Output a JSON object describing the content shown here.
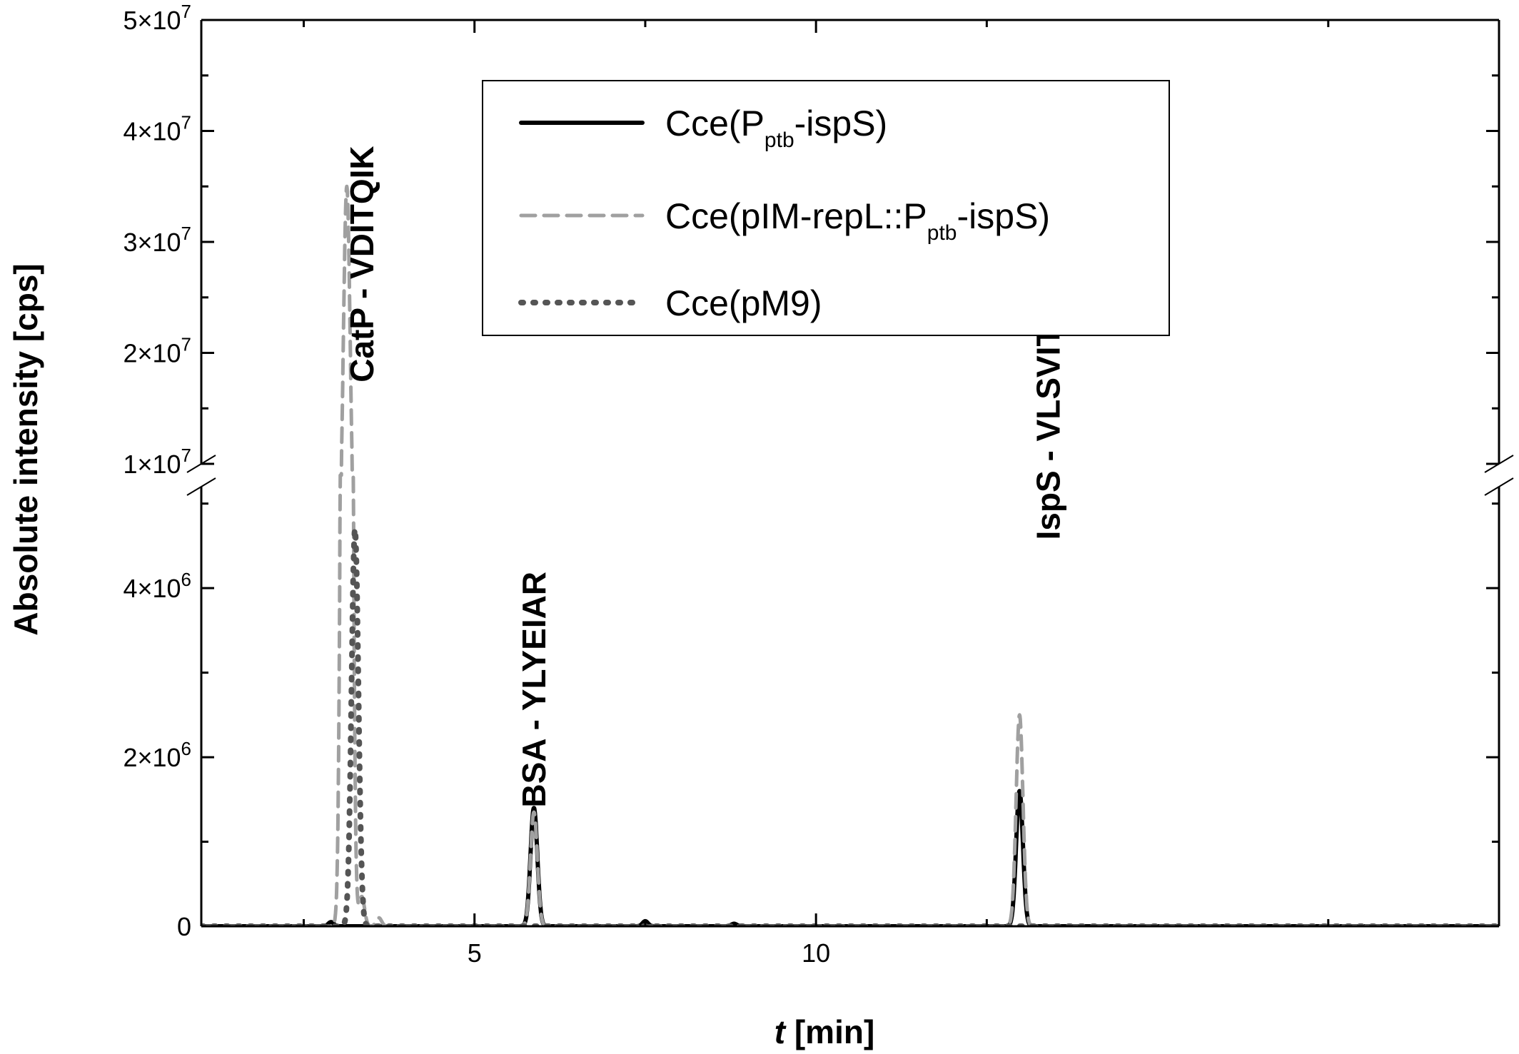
{
  "chart_data": {
    "type": "line",
    "xlabel_italic": "t",
    "xlabel_unit": " [min]",
    "ylabel": "Absolute intensity [cps]",
    "xlim": [
      1,
      20
    ],
    "x_ticks": [
      5,
      10
    ],
    "x_tick_labels": [
      "5",
      "10"
    ],
    "y_axis_broken": true,
    "y_lower_range": [
      0,
      5200000
    ],
    "y_upper_range": [
      10000000,
      50000000
    ],
    "y_tick_labels": [
      {
        "value": 0,
        "mant": "0",
        "exp": ""
      },
      {
        "value": 2000000,
        "mant": "2×10",
        "exp": "6"
      },
      {
        "value": 4000000,
        "mant": "4×10",
        "exp": "6"
      },
      {
        "value": 10000000,
        "mant": "1×10",
        "exp": "7"
      },
      {
        "value": 20000000,
        "mant": "2×10",
        "exp": "7"
      },
      {
        "value": 30000000,
        "mant": "3×10",
        "exp": "7"
      },
      {
        "value": 40000000,
        "mant": "4×10",
        "exp": "7"
      },
      {
        "value": 50000000,
        "mant": "5×10",
        "exp": "7"
      }
    ],
    "legend_position": "top-right",
    "series": [
      {
        "name_main": "Cce(P",
        "name_sub": "ptb",
        "name_tail": "-ispS)",
        "color": "#000000",
        "style": "solid",
        "peaks": [
          {
            "x": 5.87,
            "y": 1400000,
            "w": 0.05
          },
          {
            "x": 12.98,
            "y": 1600000,
            "w": 0.05
          }
        ],
        "bumps": [
          {
            "x": 2.9,
            "y": 50000
          },
          {
            "x": 7.5,
            "y": 60000
          },
          {
            "x": 8.8,
            "y": 30000
          }
        ]
      },
      {
        "name_main": "Cce(pIM-repL::P",
        "name_sub": "ptb",
        "name_tail": "-ispS)",
        "color": "#a0a0a0",
        "style": "dashed",
        "peaks": [
          {
            "x": 3.13,
            "y": 35000000,
            "w": 0.05
          },
          {
            "x": 5.87,
            "y": 1350000,
            "w": 0.05
          },
          {
            "x": 12.98,
            "y": 2500000,
            "w": 0.05
          }
        ],
        "bumps": [
          {
            "x": 3.35,
            "y": 350000
          },
          {
            "x": 3.6,
            "y": 100000
          }
        ]
      },
      {
        "name_main": "Cce(pM9)",
        "name_sub": "",
        "name_tail": "",
        "color": "#555555",
        "style": "dotted",
        "peaks": [
          {
            "x": 3.25,
            "y": 4700000,
            "w": 0.05
          }
        ],
        "bumps": []
      }
    ],
    "annotations": [
      {
        "text": "CatP - VDITQIK",
        "x": 3.35,
        "y_value": 28000000
      },
      {
        "text": "BSA - YLYEIAR",
        "x": 5.87,
        "y_value": 2800000
      },
      {
        "text": "IspS - VLSVITEPILPFER",
        "x": 13.4,
        "y_value": 20000000
      }
    ]
  }
}
